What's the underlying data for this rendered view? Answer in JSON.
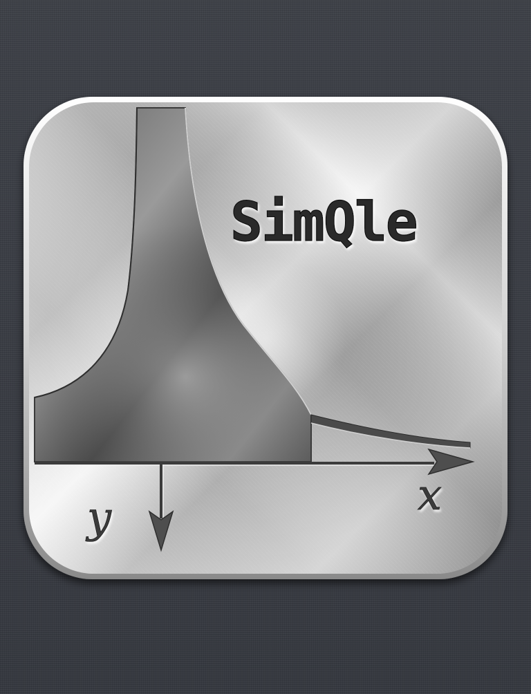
{
  "screen": {
    "type": "launch-screen",
    "background": "#3a3d44"
  },
  "app_icon": {
    "title": "SimQle",
    "x_axis_label": "x",
    "y_axis_label": "y",
    "colors": {
      "metal_light": "#f2f2f2",
      "metal_mid": "#bdbdbd",
      "metal_dark": "#6e6e6e",
      "engraved_text": "#2b2b2b"
    }
  }
}
